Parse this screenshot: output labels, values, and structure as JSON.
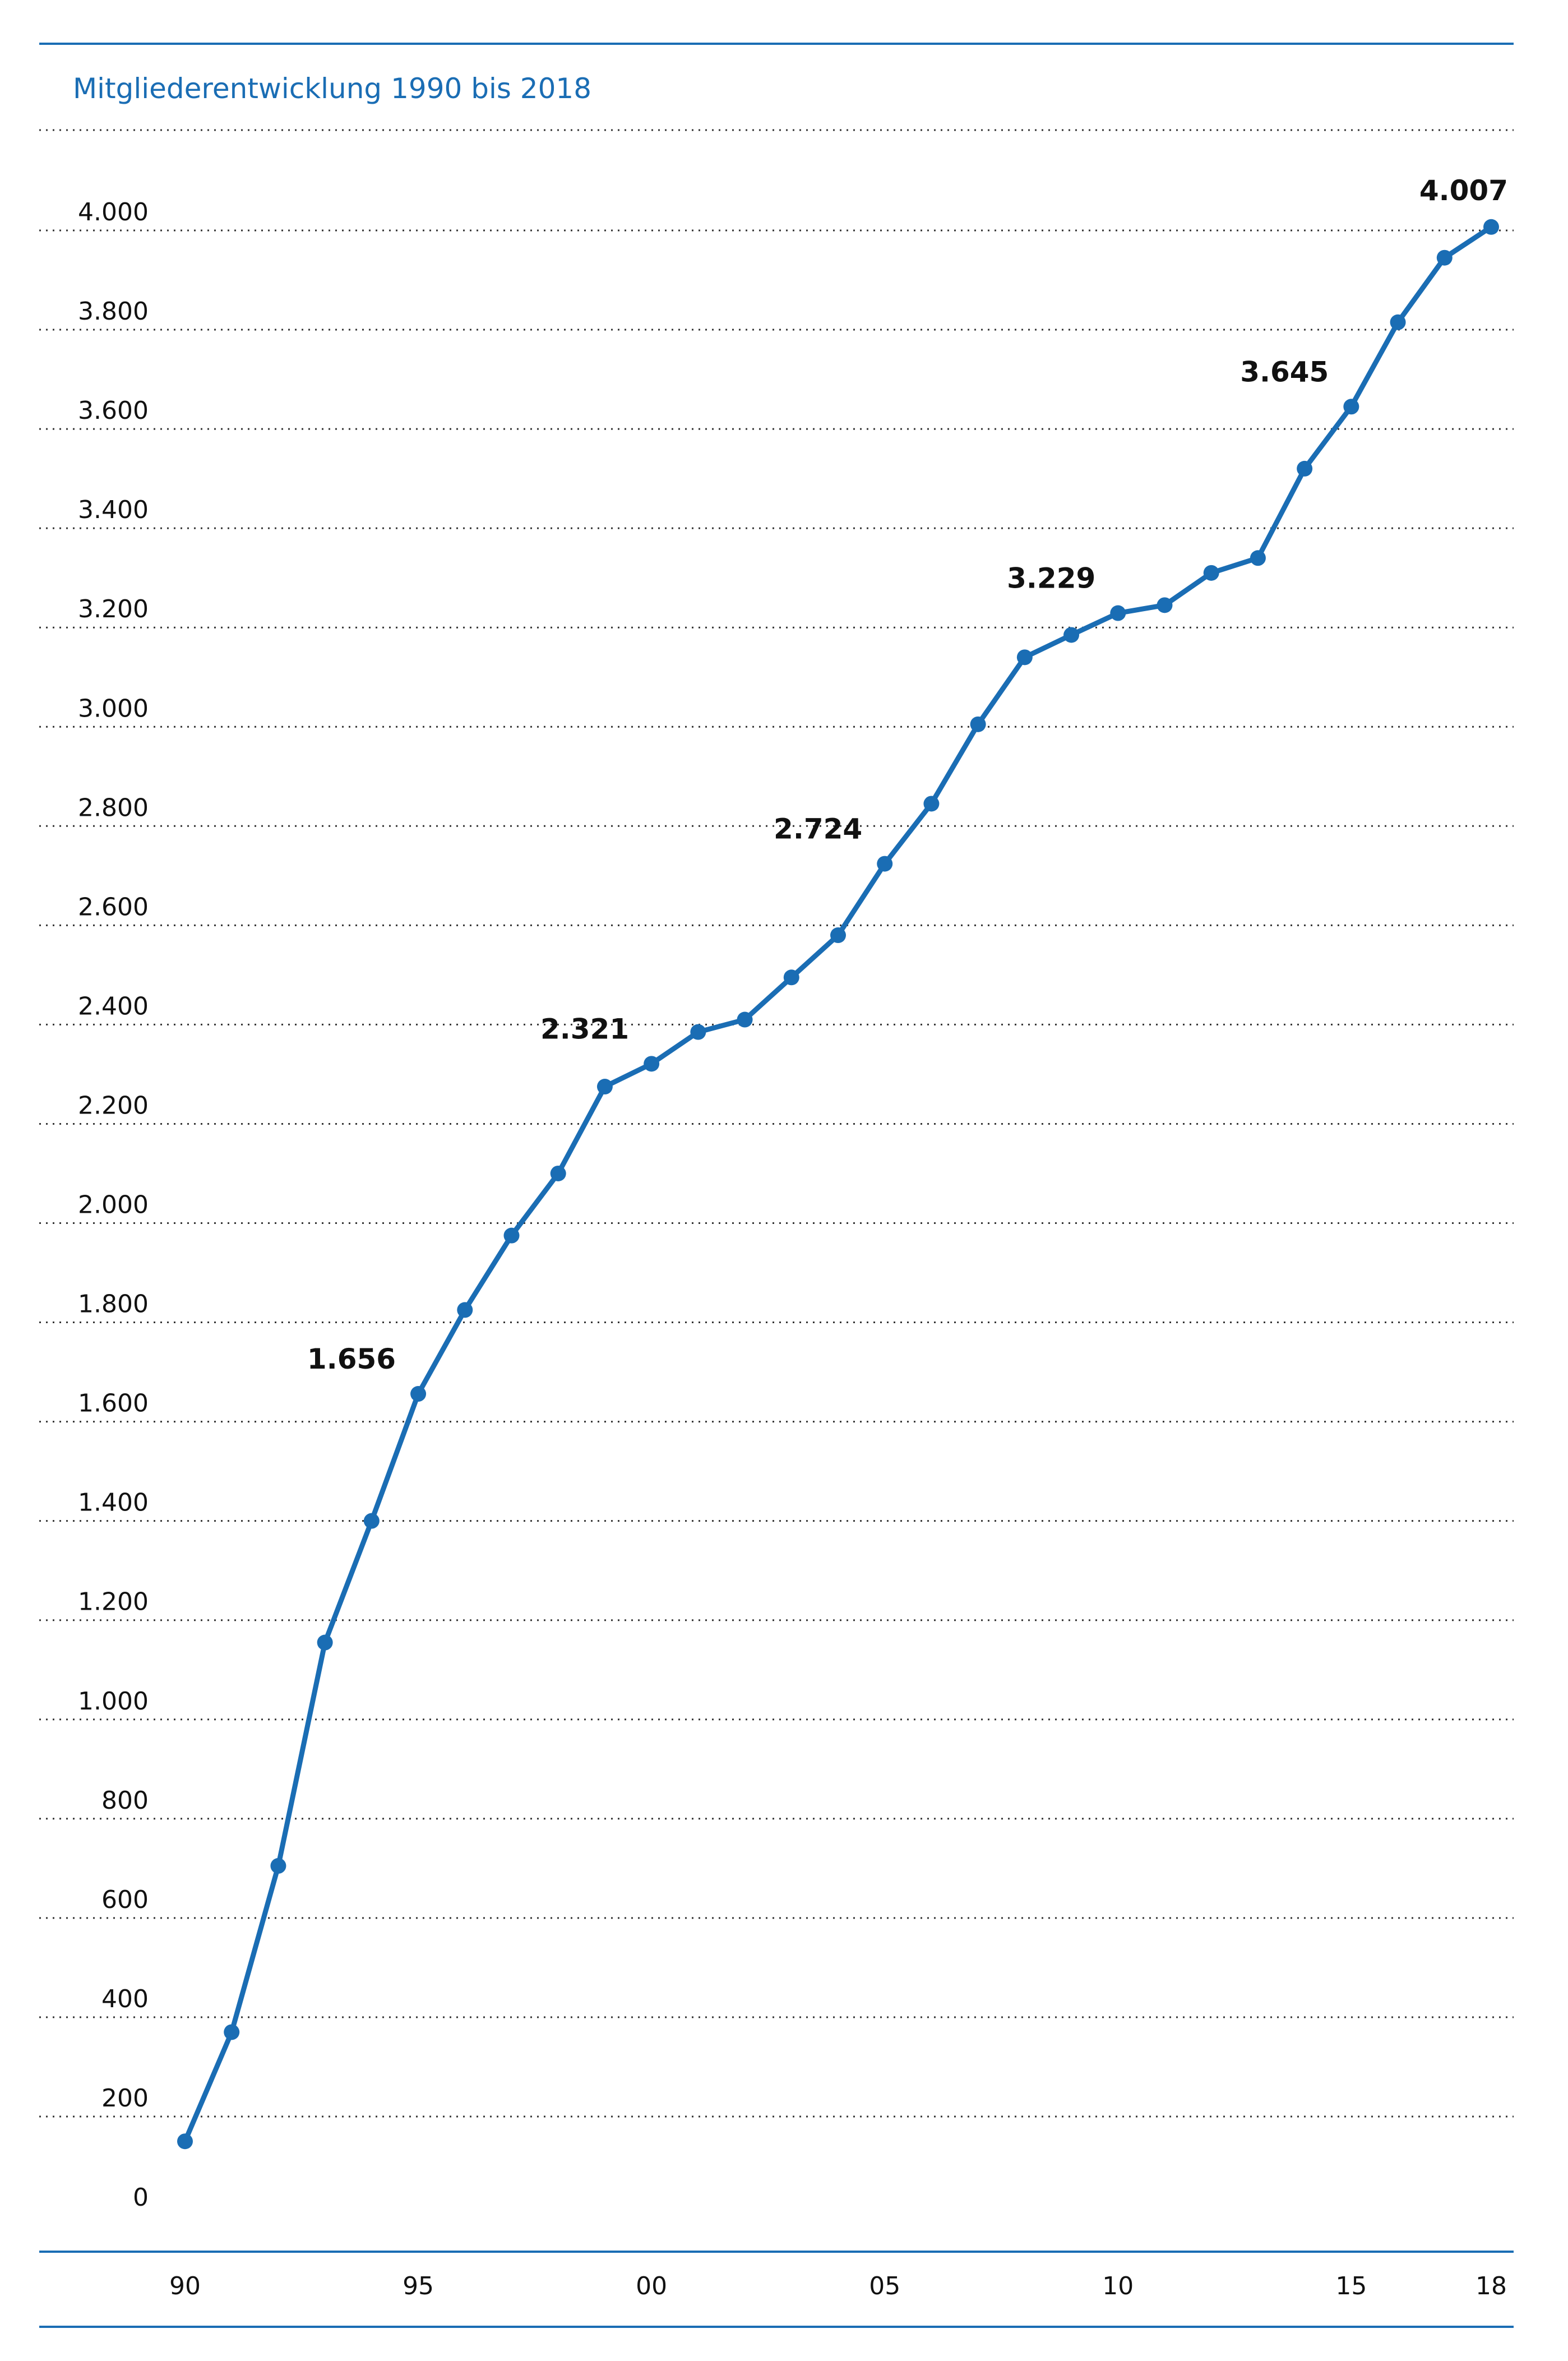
{
  "colors": {
    "accent": "#1a6db4",
    "text": "#111111",
    "grid": "#333333"
  },
  "chart_data": {
    "type": "line",
    "title": "Mitgliederentwicklung 1990 bis 2018",
    "xlabel": "",
    "ylabel": "",
    "ylim": [
      0,
      4000
    ],
    "yticks": [
      0,
      200,
      400,
      600,
      800,
      1000,
      1200,
      1400,
      1600,
      1800,
      2000,
      2200,
      2400,
      2600,
      2800,
      3000,
      3200,
      3400,
      3600,
      3800,
      4000
    ],
    "ytick_labels": [
      "0",
      "200",
      "400",
      "600",
      "800",
      "1.000",
      "1.200",
      "1.400",
      "1.600",
      "1.800",
      "2.000",
      "2.200",
      "2.400",
      "2.600",
      "2.800",
      "3.000",
      "3.200",
      "3.400",
      "3.600",
      "3.800",
      "4.000"
    ],
    "xticks": [
      1990,
      1995,
      2000,
      2005,
      2010,
      2015,
      2018
    ],
    "xtick_labels": [
      "90",
      "95",
      "00",
      "05",
      "10",
      "15",
      "18"
    ],
    "grid": "horizontal dotted",
    "legend": "none",
    "x": [
      1990,
      1991,
      1992,
      1993,
      1994,
      1995,
      1996,
      1997,
      1998,
      1999,
      2000,
      2001,
      2002,
      2003,
      2004,
      2005,
      2006,
      2007,
      2008,
      2009,
      2010,
      2011,
      2012,
      2013,
      2014,
      2015,
      2016,
      2017,
      2018
    ],
    "series": [
      {
        "values": [
          150,
          370,
          705,
          1155,
          1400,
          1656,
          1825,
          1975,
          2100,
          2275,
          2321,
          2385,
          2410,
          2495,
          2580,
          2724,
          2845,
          3005,
          3140,
          3185,
          3229,
          3245,
          3310,
          3340,
          3520,
          3645,
          3815,
          3945,
          4007
        ]
      }
    ],
    "annotations": [
      {
        "x": 1995,
        "value": 1656,
        "text": "1.656"
      },
      {
        "x": 2000,
        "value": 2321,
        "text": "2.321"
      },
      {
        "x": 2005,
        "value": 2724,
        "text": "2.724"
      },
      {
        "x": 2010,
        "value": 3229,
        "text": "3.229"
      },
      {
        "x": 2015,
        "value": 3645,
        "text": "3.645"
      },
      {
        "x": 2018,
        "value": 4007,
        "text": "4.007"
      }
    ]
  }
}
